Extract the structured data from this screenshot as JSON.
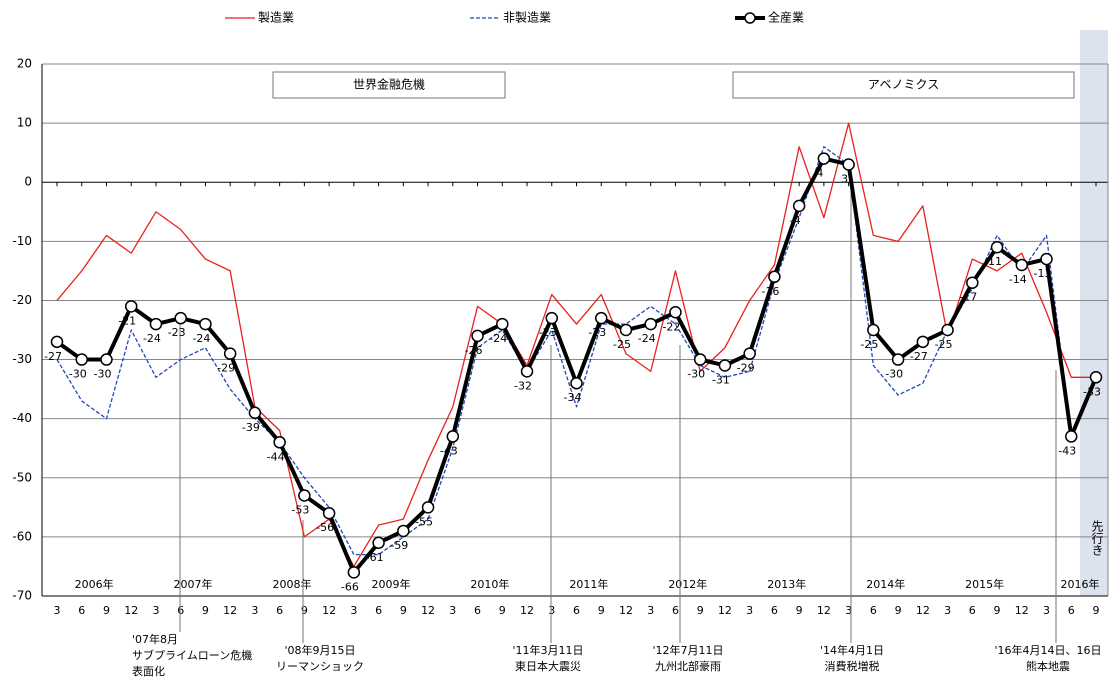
{
  "chart_data": {
    "type": "line",
    "categories": [
      "3",
      "6",
      "9",
      "12",
      "3",
      "6",
      "9",
      "12",
      "3",
      "6",
      "9",
      "12",
      "3",
      "6",
      "9",
      "12",
      "3",
      "6",
      "9",
      "12",
      "3",
      "6",
      "9",
      "12",
      "3",
      "6",
      "9",
      "12",
      "3",
      "6",
      "9",
      "12",
      "3",
      "6",
      "9",
      "12",
      "3",
      "6",
      "9",
      "12",
      "3",
      "6",
      "9"
    ],
    "year_labels": [
      "2006年",
      "2007年",
      "2008年",
      "2009年",
      "2010年",
      "2011年",
      "2012年",
      "2013年",
      "2014年",
      "2015年",
      "2016年"
    ],
    "series": [
      {
        "name": "製造業",
        "color": "#e8211d",
        "line_style": "solid",
        "values": [
          -20,
          -15,
          -9,
          -12,
          -5,
          -8,
          -13,
          -15,
          -38,
          -42,
          -60,
          -57,
          -65,
          -58,
          -57,
          -47,
          -38,
          -21,
          -24,
          -31,
          -19,
          -24,
          -19,
          -29,
          -32,
          -15,
          -32,
          -28,
          -20,
          -14,
          6,
          -6,
          10,
          -9,
          -10,
          -4,
          -26,
          -13,
          -15,
          -12,
          -22,
          -33,
          -33
        ]
      },
      {
        "name": "非製造業",
        "color": "#2247b8",
        "line_style": "dashed",
        "values": [
          -30,
          -37,
          -40,
          -25,
          -33,
          -30,
          -28,
          -35,
          -40,
          -44,
          -50,
          -55,
          -63,
          -63,
          -60,
          -57,
          -45,
          -28,
          -25,
          -32,
          -25,
          -38,
          -24,
          -24,
          -21,
          -24,
          -31,
          -33,
          -32,
          -17,
          -6,
          6,
          3,
          -31,
          -36,
          -34,
          -25,
          -18,
          -9,
          -15,
          -9,
          -43,
          -33
        ]
      },
      {
        "name": "全産業",
        "color": "#000000",
        "line_style": "bold",
        "marker": "circle",
        "data_labels": true,
        "values": [
          -27,
          -30,
          -30,
          -21,
          -24,
          -23,
          -24,
          -29,
          -39,
          -44,
          -53,
          -56,
          -66,
          -61,
          -59,
          -55,
          -43,
          -26,
          -24,
          -32,
          -23,
          -34,
          -23,
          -25,
          -24,
          -22,
          -30,
          -31,
          -29,
          -16,
          -4,
          4,
          3,
          -25,
          -30,
          -27,
          -25,
          -17,
          -11,
          -14,
          -13,
          -43,
          -33
        ]
      }
    ],
    "ylim": [
      -70,
      20
    ],
    "yticks": [
      -70,
      -60,
      -50,
      -40,
      -30,
      -20,
      -10,
      0,
      10,
      20
    ],
    "grid": true,
    "periods": [
      "世界金融危機",
      "アベノミクス"
    ],
    "forecast_label": "先行き",
    "events": [
      [
        "'07年8月",
        "サブプライムローン危機",
        "表面化"
      ],
      [
        "'08年9月15日",
        "リーマンショック"
      ],
      [
        "'11年3月11日",
        "東日本大震災"
      ],
      [
        "'12年7月11日",
        "九州北部豪雨"
      ],
      [
        "'14年4月1日",
        "消費税増税"
      ],
      [
        "'16年4月14日、16日",
        "熊本地震"
      ]
    ]
  }
}
